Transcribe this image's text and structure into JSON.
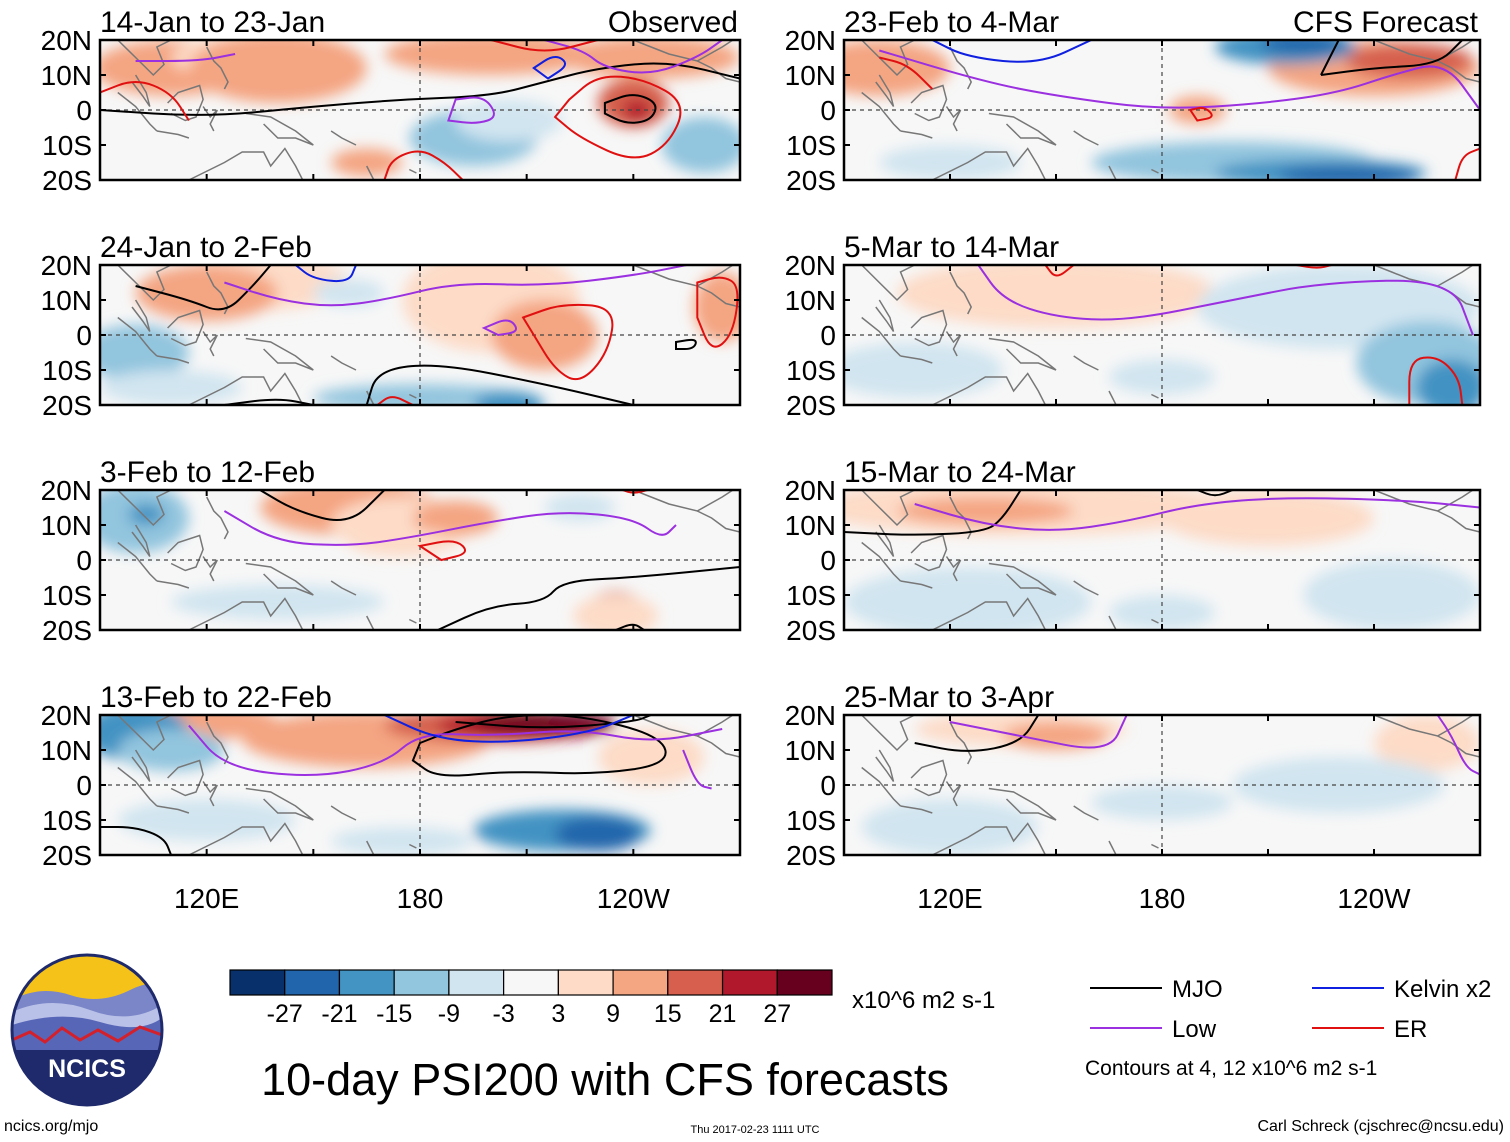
{
  "chart_data": {
    "type": "heatmap",
    "title": "10-day PSI200 with CFS forecasts",
    "variable": "PSI200 anomaly",
    "columns": [
      {
        "header": "Observed"
      },
      {
        "header": "CFS Forecast"
      }
    ],
    "panels": [
      {
        "title": "14-Jan to 23-Jan",
        "column": 0,
        "row": 0
      },
      {
        "title": "24-Jan to 2-Feb",
        "column": 0,
        "row": 1
      },
      {
        "title": "3-Feb to 12-Feb",
        "column": 0,
        "row": 2
      },
      {
        "title": "13-Feb to 22-Feb",
        "column": 0,
        "row": 3
      },
      {
        "title": "23-Feb to 4-Mar",
        "column": 1,
        "row": 0
      },
      {
        "title": "5-Mar to 14-Mar",
        "column": 1,
        "row": 1
      },
      {
        "title": "15-Mar to 24-Mar",
        "column": 1,
        "row": 2
      },
      {
        "title": "25-Mar to 3-Apr",
        "column": 1,
        "row": 3
      }
    ],
    "y_ticks": [
      "20N",
      "10N",
      "0",
      "10S",
      "20S"
    ],
    "x_ticks": [
      "120E",
      "180",
      "120W"
    ],
    "lon_range": [
      90,
      270
    ],
    "lat_range": [
      -20,
      20
    ],
    "colorbar": {
      "levels": [
        "-27",
        "-21",
        "-15",
        "-9",
        "-3",
        "3",
        "9",
        "15",
        "21",
        "27"
      ],
      "colors": [
        "#08306b",
        "#2166ac",
        "#4393c3",
        "#92c5de",
        "#d1e5f0",
        "#f7f7f7",
        "#fddbc7",
        "#f4a582",
        "#d6604d",
        "#b2182b",
        "#67001f"
      ],
      "units": "x10^6 m2 s-1"
    },
    "legend": {
      "entries": [
        {
          "label": "MJO",
          "color": "#000000"
        },
        {
          "label": "Kelvin x2",
          "color": "#1020e0"
        },
        {
          "label": "Low",
          "color": "#9b30e0"
        },
        {
          "label": "ER",
          "color": "#e01010"
        }
      ],
      "note": "Contours at 4, 12 x10^6 m2 s-1"
    }
  },
  "footer": {
    "left": "ncics.org/mjo",
    "center": "Thu 2017-02-23 1111 UTC",
    "right": "Carl Schreck (cjschrec@ncsu.edu)"
  },
  "logo": {
    "text": "NCICS"
  }
}
